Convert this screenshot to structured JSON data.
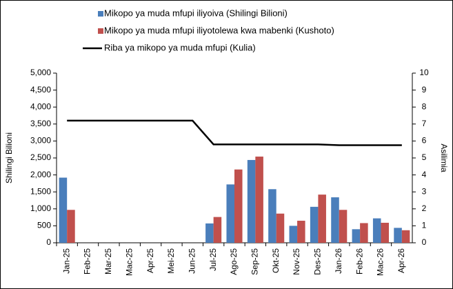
{
  "chart_data": {
    "type": "bar",
    "categories": [
      "Jan-25",
      "Feb-25",
      "Mar-25",
      "Mac-25",
      "Apr-25",
      "Mei-25",
      "Jun-25",
      "Jul-25",
      "Ago-25",
      "Sep-25",
      "Okt-25",
      "Nov-25",
      "Des-25",
      "Jan-26",
      "Feb-26",
      "Mac-26",
      "Apr-26"
    ],
    "series": [
      {
        "name": "Mikopo ya muda mfupi iliyoiva (Shilingi Bilioni)",
        "color": "#4a7ebb",
        "type": "bar",
        "values": [
          1920,
          null,
          null,
          null,
          null,
          null,
          null,
          570,
          1720,
          2440,
          1580,
          500,
          1060,
          1340,
          400,
          720,
          440
        ]
      },
      {
        "name": "Mikopo ya muda mfupi iliyotolewa kwa mabenki (Kushoto)",
        "color": "#c0504d",
        "type": "bar",
        "values": [
          970,
          null,
          null,
          null,
          null,
          null,
          null,
          760,
          2160,
          2540,
          860,
          650,
          1420,
          970,
          580,
          590,
          370
        ]
      },
      {
        "name": "Riba ya mikopo ya muda mfupi (Kulia)",
        "color": "#000000",
        "type": "line",
        "axis": "y2",
        "values": [
          7.2,
          7.2,
          7.2,
          7.2,
          7.2,
          7.2,
          7.2,
          5.8,
          5.8,
          5.8,
          5.8,
          5.8,
          5.8,
          5.75,
          5.75,
          5.75,
          5.75
        ]
      }
    ],
    "y_label": "Shilingi Bilioni",
    "y2_label": "Asilimia",
    "ylim": [
      0,
      5000
    ],
    "yticks": [
      0,
      500,
      {
        "value": 1000,
        "label": "1,000"
      },
      {
        "value": 1500,
        "label": "1,500"
      },
      {
        "value": 2000,
        "label": "2,000"
      },
      {
        "value": 2500,
        "label": "2,500"
      },
      {
        "value": 3000,
        "label": "3,000"
      },
      {
        "value": 3500,
        "label": "3,500"
      },
      {
        "value": 4000,
        "label": "4,000"
      },
      {
        "value": 4500,
        "label": "4,500"
      },
      {
        "value": 5000,
        "label": "5,000"
      }
    ],
    "y2lim": [
      0,
      10
    ],
    "y2ticks": [
      0,
      1,
      2,
      3,
      4,
      5,
      6,
      7,
      8,
      9,
      10
    ]
  }
}
